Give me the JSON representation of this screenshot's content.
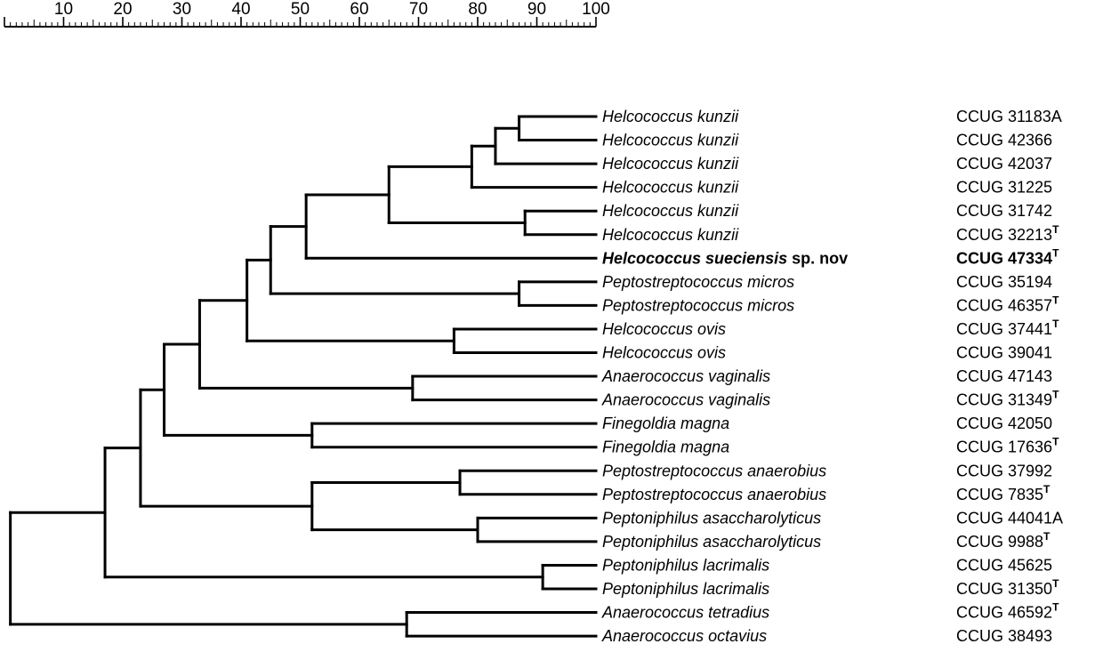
{
  "scale": {
    "ticks": [
      10,
      20,
      30,
      40,
      50,
      60,
      70,
      80,
      90,
      100
    ],
    "min": 0,
    "max": 100,
    "minor_step": 1
  },
  "leaves": [
    {
      "name": "Helcococcus kunzii",
      "strain": "CCUG 31183A",
      "type_strain": false
    },
    {
      "name": "Helcococcus kunzii",
      "strain": "CCUG 42366",
      "type_strain": false
    },
    {
      "name": "Helcococcus kunzii",
      "strain": "CCUG 42037",
      "type_strain": false
    },
    {
      "name": "Helcococcus kunzii",
      "strain": "CCUG 31225",
      "type_strain": false
    },
    {
      "name": "Helcococcus kunzii",
      "strain": "CCUG 31742",
      "type_strain": false
    },
    {
      "name": "Helcococcus kunzii",
      "strain": "CCUG 32213",
      "type_strain": true
    },
    {
      "name": "Helcococcus sueciensis",
      "suffix": " sp. nov",
      "strain": "CCUG 47334",
      "type_strain": true,
      "highlight": true
    },
    {
      "name": "Peptostreptococcus micros",
      "strain": "CCUG 35194",
      "type_strain": false
    },
    {
      "name": "Peptostreptococcus micros",
      "strain": "CCUG 46357",
      "type_strain": true
    },
    {
      "name": "Helcococcus ovis",
      "strain": "CCUG 37441",
      "type_strain": true
    },
    {
      "name": "Helcococcus ovis",
      "strain": "CCUG 39041",
      "type_strain": false
    },
    {
      "name": "Anaerococcus vaginalis",
      "strain": "CCUG 47143",
      "type_strain": false
    },
    {
      "name": "Anaerococcus vaginalis",
      "strain": "CCUG 31349",
      "type_strain": true
    },
    {
      "name": "Finegoldia magna",
      "strain": "CCUG 42050",
      "type_strain": false
    },
    {
      "name": "Finegoldia magna",
      "strain": "CCUG 17636",
      "type_strain": true
    },
    {
      "name": "Peptostreptococcus anaerobius",
      "strain": "CCUG 37992",
      "type_strain": false
    },
    {
      "name": "Peptostreptococcus anaerobius",
      "strain": "CCUG 7835",
      "type_strain": true
    },
    {
      "name": "Peptoniphilus asaccharolyticus",
      "strain": "CCUG 44041A",
      "type_strain": false
    },
    {
      "name": "Peptoniphilus asaccharolyticus",
      "strain": "CCUG 9988",
      "type_strain": true
    },
    {
      "name": "Peptoniphilus lacrimalis",
      "strain": "CCUG 45625",
      "type_strain": false
    },
    {
      "name": "Peptoniphilus lacrimalis",
      "strain": "CCUG 31350",
      "type_strain": true
    },
    {
      "name": "Anaerococcus tetradius",
      "strain": "CCUG 46592",
      "type_strain": true
    },
    {
      "name": "Anaerococcus octavius",
      "strain": "CCUG 38493",
      "type_strain": false
    }
  ],
  "type_mark": "T",
  "tree": {
    "sim": 1,
    "children": [
      {
        "sim": 17,
        "children": [
          {
            "sim": 23,
            "children": [
              {
                "sim": 27,
                "children": [
                  {
                    "sim": 33,
                    "children": [
                      {
                        "sim": 41,
                        "children": [
                          {
                            "sim": 45,
                            "children": [
                              {
                                "sim": 51,
                                "children": [
                                  {
                                    "sim": 65,
                                    "children": [
                                      {
                                        "sim": 79,
                                        "children": [
                                          {
                                            "sim": 83,
                                            "children": [
                                              {
                                                "sim": 87,
                                                "children": [
                                                  {
                                                    "leaf": 0
                                                  },
                                                  {
                                                    "leaf": 1
                                                  }
                                                ]
                                              },
                                              {
                                                "leaf": 2
                                              }
                                            ]
                                          },
                                          {
                                            "leaf": 3
                                          }
                                        ]
                                      },
                                      {
                                        "sim": 88,
                                        "children": [
                                          {
                                            "leaf": 4
                                          },
                                          {
                                            "leaf": 5
                                          }
                                        ]
                                      }
                                    ]
                                  },
                                  {
                                    "leaf": 6
                                  }
                                ]
                              },
                              {
                                "sim": 87,
                                "children": [
                                  {
                                    "leaf": 7
                                  },
                                  {
                                    "leaf": 8
                                  }
                                ]
                              }
                            ]
                          },
                          {
                            "sim": 76,
                            "children": [
                              {
                                "leaf": 9
                              },
                              {
                                "leaf": 10
                              }
                            ]
                          }
                        ]
                      },
                      {
                        "sim": 69,
                        "children": [
                          {
                            "leaf": 11
                          },
                          {
                            "leaf": 12
                          }
                        ]
                      }
                    ]
                  },
                  {
                    "sim": 52,
                    "children": [
                      {
                        "leaf": 13
                      },
                      {
                        "leaf": 14
                      }
                    ]
                  }
                ]
              },
              {
                "sim": 52,
                "children": [
                  {
                    "sim": 77,
                    "children": [
                      {
                        "leaf": 15
                      },
                      {
                        "leaf": 16
                      }
                    ]
                  },
                  {
                    "sim": 80,
                    "children": [
                      {
                        "leaf": 17
                      },
                      {
                        "leaf": 18
                      }
                    ]
                  }
                ]
              }
            ]
          },
          {
            "sim": 91,
            "children": [
              {
                "leaf": 19
              },
              {
                "leaf": 20
              }
            ]
          }
        ]
      },
      {
        "sim": 68,
        "children": [
          {
            "leaf": 21
          },
          {
            "leaf": 22
          }
        ]
      }
    ]
  }
}
